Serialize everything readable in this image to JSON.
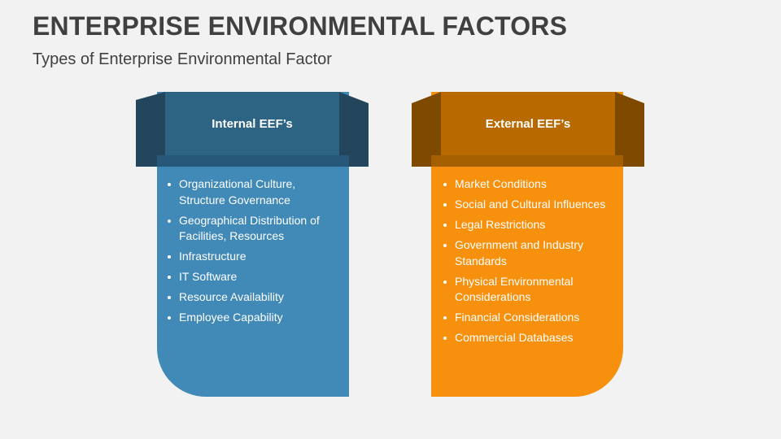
{
  "title": "ENTERPRISE ENVIRONMENTAL FACTORS",
  "subtitle": "Types of Enterprise Environmental Factor",
  "cards": [
    {
      "heading": "Internal EEF’s",
      "items": [
        "Organizational Culture, Structure Governance",
        "Geographical Distribution of Facilities, Resources",
        "Infrastructure",
        "IT Software",
        "Resource Availability",
        "Employee Capability"
      ],
      "colors": {
        "body": "#4189b6",
        "header": "#2d6484",
        "wing": "#23465d"
      }
    },
    {
      "heading": "External EEF’s",
      "items": [
        "Market Conditions",
        "Social and Cultural Influences",
        "Legal Restrictions",
        "Government and Industry Standards",
        "Physical Environmental Considerations",
        "Financial Considerations",
        "Commercial Databases"
      ],
      "colors": {
        "body": "#f7900d",
        "header": "#b86a00",
        "wing": "#7e4a00"
      }
    }
  ]
}
